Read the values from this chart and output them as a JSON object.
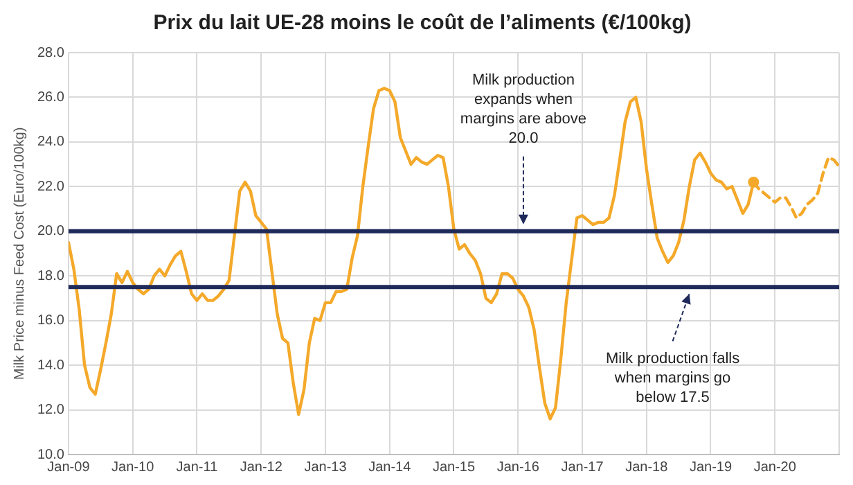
{
  "chart_data": {
    "type": "line",
    "title": "Prix du lait UE-28 moins le coût de l’aliments (€/100kg)",
    "ylabel": "Milk Price minus Feed Cost (Euro/100kg)",
    "xlim": [
      "2009-01",
      "2021-01"
    ],
    "xticks": [
      {
        "value": "2009-01",
        "label": "Jan-09"
      },
      {
        "value": "2010-01",
        "label": "Jan-10"
      },
      {
        "value": "2011-01",
        "label": "Jan-11"
      },
      {
        "value": "2012-01",
        "label": "Jan-12"
      },
      {
        "value": "2013-01",
        "label": "Jan-13"
      },
      {
        "value": "2014-01",
        "label": "Jan-14"
      },
      {
        "value": "2015-01",
        "label": "Jan-15"
      },
      {
        "value": "2016-01",
        "label": "Jan-16"
      },
      {
        "value": "2017-01",
        "label": "Jan-17"
      },
      {
        "value": "2018-01",
        "label": "Jan-18"
      },
      {
        "value": "2019-01",
        "label": "Jan-19"
      },
      {
        "value": "2020-01",
        "label": "Jan-20"
      },
      {
        "value": "2021-01",
        "label": null
      }
    ],
    "ylim": [
      10,
      28
    ],
    "yticks": [
      {
        "value": 10,
        "label": "10.0"
      },
      {
        "value": 12,
        "label": "12.0"
      },
      {
        "value": 14,
        "label": "14.0"
      },
      {
        "value": 16,
        "label": "16.0"
      },
      {
        "value": 18,
        "label": "18.0"
      },
      {
        "value": 20,
        "label": "20.0"
      },
      {
        "value": 22,
        "label": "22.0"
      },
      {
        "value": 24,
        "label": "24.0"
      },
      {
        "value": 26,
        "label": "26.0"
      },
      {
        "value": 28,
        "label": "28.0"
      }
    ],
    "grid": true,
    "legend": false,
    "marker": "none",
    "series": [
      {
        "color": "#f4a92a",
        "line_style": "solid",
        "x": [
          "2009-01",
          "2009-02",
          "2009-03",
          "2009-04",
          "2009-05",
          "2009-06",
          "2009-07",
          "2009-08",
          "2009-09",
          "2009-10",
          "2009-11",
          "2009-12",
          "2010-01",
          "2010-02",
          "2010-03",
          "2010-04",
          "2010-05",
          "2010-06",
          "2010-07",
          "2010-08",
          "2010-09",
          "2010-10",
          "2010-11",
          "2010-12",
          "2011-01",
          "2011-02",
          "2011-03",
          "2011-04",
          "2011-05",
          "2011-06",
          "2011-07",
          "2011-08",
          "2011-09",
          "2011-10",
          "2011-11",
          "2011-12",
          "2012-01",
          "2012-02",
          "2012-03",
          "2012-04",
          "2012-05",
          "2012-06",
          "2012-07",
          "2012-08",
          "2012-09",
          "2012-10",
          "2012-11",
          "2012-12",
          "2013-01",
          "2013-02",
          "2013-03",
          "2013-04",
          "2013-05",
          "2013-06",
          "2013-07",
          "2013-08",
          "2013-09",
          "2013-10",
          "2013-11",
          "2013-12",
          "2014-01",
          "2014-02",
          "2014-03",
          "2014-04",
          "2014-05",
          "2014-06",
          "2014-07",
          "2014-08",
          "2014-09",
          "2014-10",
          "2014-11",
          "2014-12",
          "2015-01",
          "2015-02",
          "2015-03",
          "2015-04",
          "2015-05",
          "2015-06",
          "2015-07",
          "2015-08",
          "2015-09",
          "2015-10",
          "2015-11",
          "2015-12",
          "2016-01",
          "2016-02",
          "2016-03",
          "2016-04",
          "2016-05",
          "2016-06",
          "2016-07",
          "2016-08",
          "2016-09",
          "2016-10",
          "2016-11",
          "2016-12",
          "2017-01",
          "2017-02",
          "2017-03",
          "2017-04",
          "2017-05",
          "2017-06",
          "2017-07",
          "2017-08",
          "2017-09",
          "2017-10",
          "2017-11",
          "2017-12",
          "2018-01",
          "2018-02",
          "2018-03",
          "2018-04",
          "2018-05",
          "2018-06",
          "2018-07",
          "2018-08",
          "2018-09",
          "2018-10",
          "2018-11",
          "2018-12",
          "2019-01",
          "2019-02",
          "2019-03",
          "2019-04",
          "2019-05",
          "2019-06",
          "2019-07",
          "2019-08",
          "2019-09"
        ],
        "values": [
          19.5,
          18.3,
          16.5,
          14.0,
          13.0,
          12.7,
          13.8,
          15.0,
          16.3,
          18.1,
          17.7,
          18.2,
          17.7,
          17.4,
          17.2,
          17.4,
          18.0,
          18.3,
          18.0,
          18.5,
          18.9,
          19.1,
          18.2,
          17.2,
          16.9,
          17.2,
          16.9,
          16.9,
          17.1,
          17.4,
          17.8,
          19.8,
          21.8,
          22.2,
          21.8,
          20.7,
          20.4,
          20.1,
          18.2,
          16.3,
          15.2,
          15.0,
          13.2,
          11.8,
          12.9,
          15.0,
          16.1,
          16.0,
          16.8,
          16.8,
          17.3,
          17.3,
          17.4,
          18.8,
          19.8,
          22.0,
          23.8,
          25.5,
          26.3,
          26.4,
          26.3,
          25.8,
          24.2,
          23.6,
          23.0,
          23.3,
          23.1,
          23.0,
          23.2,
          23.4,
          23.3,
          22.0,
          20.1,
          19.2,
          19.4,
          19.0,
          18.7,
          18.1,
          17.0,
          16.8,
          17.2,
          18.1,
          18.1,
          17.9,
          17.4,
          17.1,
          16.6,
          15.6,
          13.9,
          12.3,
          11.6,
          12.1,
          14.3,
          16.8,
          18.7,
          20.6,
          20.7,
          20.5,
          20.3,
          20.4,
          20.4,
          20.6,
          21.6,
          23.2,
          24.9,
          25.8,
          26.0,
          24.9,
          22.8,
          21.2,
          19.7,
          19.1,
          18.6,
          18.9,
          19.5,
          20.5,
          22.0,
          23.2,
          23.5,
          23.1,
          22.6,
          22.3,
          22.2,
          21.9,
          22.0,
          21.4,
          20.8,
          21.2,
          22.2
        ]
      },
      {
        "color": "#f4a92a",
        "line_style": "dashed",
        "x": [
          "2019-09",
          "2019-10",
          "2019-11",
          "2019-12",
          "2020-01",
          "2020-02",
          "2020-03",
          "2020-04",
          "2020-05",
          "2020-06",
          "2020-07",
          "2020-08",
          "2020-09",
          "2020-10",
          "2020-11",
          "2020-12",
          "2021-01"
        ],
        "values": [
          22.2,
          21.9,
          21.7,
          21.5,
          21.3,
          21.5,
          21.5,
          21.1,
          20.6,
          20.8,
          21.2,
          21.4,
          21.7,
          22.6,
          23.3,
          23.2,
          22.9
        ]
      },
      {
        "type": "scatter",
        "color": "#f4a92a",
        "marker": "circle",
        "x": [
          "2019-09"
        ],
        "values": [
          22.2
        ]
      }
    ],
    "ref_lines": [
      {
        "axis": "y",
        "value": 20,
        "color": "#1f2a5a"
      },
      {
        "axis": "y",
        "value": 17.5,
        "color": "#1f2a5a"
      }
    ],
    "annotations": [
      {
        "text": "Milk production expands when margins are above 20.0",
        "x": "2016-02",
        "y": 20
      },
      {
        "text": "Milk production falls when margins go below 17.5",
        "x": "2018-09",
        "y": 17.5
      }
    ]
  }
}
